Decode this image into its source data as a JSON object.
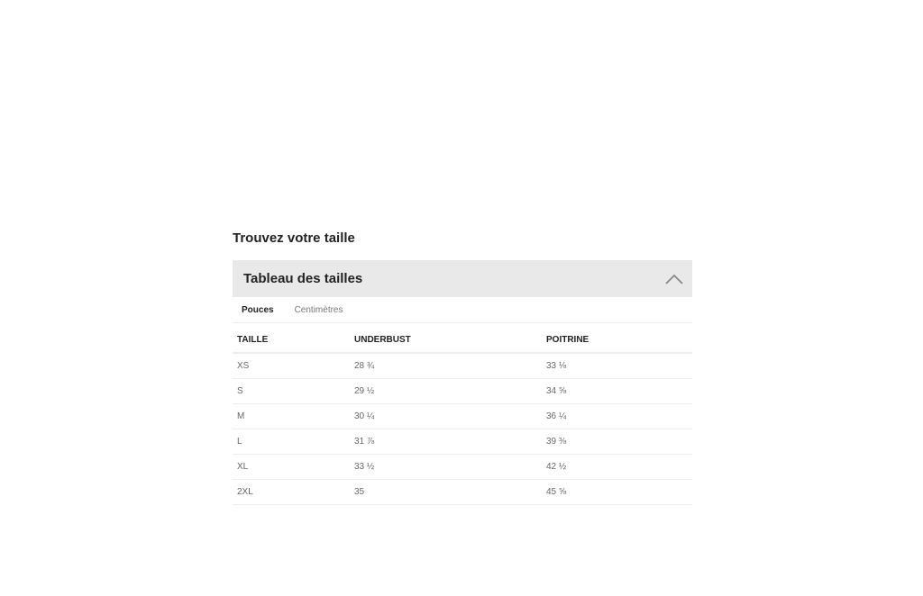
{
  "section_title": "Trouvez votre taille",
  "accordion": {
    "title": "Tableau des tailles",
    "icon": "chevron-up-icon",
    "expanded": true
  },
  "tabs": [
    {
      "label": "Pouces",
      "active": true
    },
    {
      "label": "Centimètres",
      "active": false
    }
  ],
  "table": {
    "headers": [
      "TAILLE",
      "UNDERBUST",
      "POITRINE"
    ],
    "rows": [
      [
        "XS",
        "28 ¾",
        "33 ⅛"
      ],
      [
        "S",
        "29 ½",
        "34 ⅝"
      ],
      [
        "M",
        "30 ¼",
        "36 ¼"
      ],
      [
        "L",
        "31 ⅞",
        "39 ⅜"
      ],
      [
        "XL",
        "33 ½",
        "42 ½"
      ],
      [
        "2XL",
        "35",
        "45 ⅝"
      ]
    ]
  }
}
